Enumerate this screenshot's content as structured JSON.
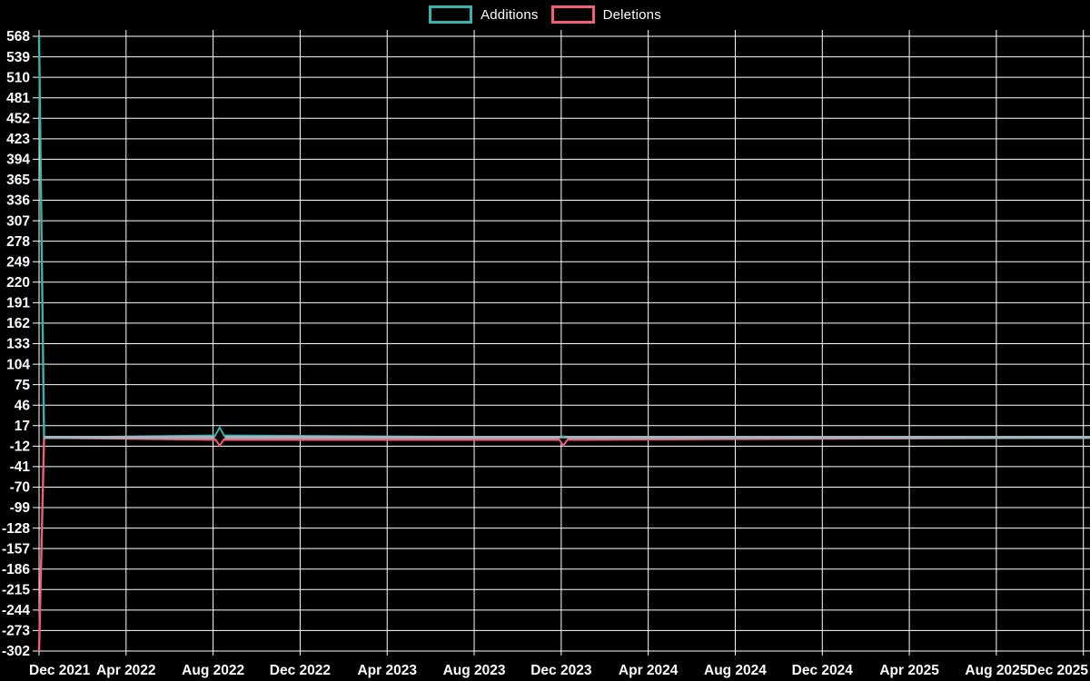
{
  "page": {
    "background": "#000000"
  },
  "legend": {
    "items": [
      {
        "label": "Additions",
        "color": "#3db1ab"
      },
      {
        "label": "Deletions",
        "color": "#ee5f78"
      }
    ]
  },
  "chart_data": {
    "type": "line",
    "title": "",
    "xlabel": "",
    "ylabel": "",
    "legend_position": "top-center",
    "grid": true,
    "colors": {
      "background": "#000000",
      "grid": "#ffffff",
      "text": "#ffffff",
      "additions": "#3db1ab",
      "deletions": "#ee5f78",
      "overlap_zero_line": "#a2b5be"
    },
    "x_ticks": [
      "Dec 2021",
      "Apr 2022",
      "Aug 2022",
      "Dec 2022",
      "Apr 2023",
      "Aug 2023",
      "Dec 2023",
      "Apr 2024",
      "Aug 2024",
      "Dec 2024",
      "Apr 2025",
      "Aug 2025",
      "Dec 2025"
    ],
    "x_tick_interval_months": 4,
    "xlim_months": [
      0,
      48.15
    ],
    "y_ticks": [
      568,
      539,
      510,
      481,
      452,
      423,
      394,
      365,
      336,
      307,
      278,
      249,
      220,
      191,
      162,
      133,
      104,
      75,
      46,
      17,
      -12,
      -41,
      -70,
      -99,
      -128,
      -157,
      -186,
      -215,
      -244,
      -273,
      -302
    ],
    "ylim": [
      -302,
      568
    ],
    "series": [
      {
        "name": "Additions",
        "color": "#3db1ab",
        "points": [
          [
            0,
            568
          ],
          [
            0.23,
            0
          ],
          [
            8.3,
            3
          ],
          [
            24.1,
            0
          ],
          [
            48.15,
            0
          ]
        ]
      },
      {
        "name": "Deletions",
        "color": "#ee5f78",
        "points": [
          [
            0,
            -302
          ],
          [
            0.23,
            0
          ],
          [
            8.3,
            -3
          ],
          [
            24.1,
            -3
          ],
          [
            48.15,
            0
          ]
        ]
      }
    ],
    "markers": [
      {
        "x_label": "Aug 2022",
        "month_offset": 8.3,
        "additions": 3,
        "deletions": -3
      },
      {
        "x_label": "Dec 2023",
        "month_offset": 24.1,
        "additions": 0,
        "deletions": -3
      }
    ]
  }
}
